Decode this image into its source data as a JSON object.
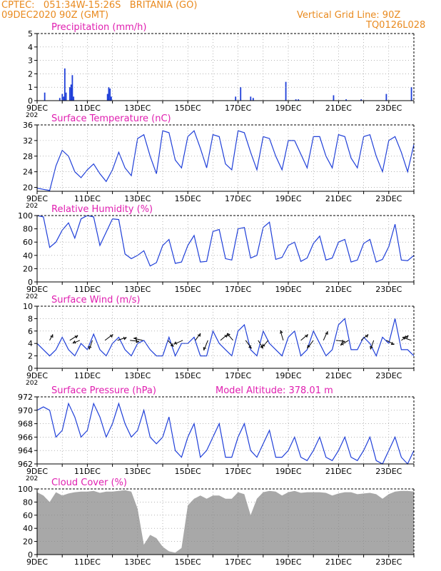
{
  "header": {
    "line1": "CPTEC:   051:34W-15:26S   BRITANIA (GO)",
    "line2": "09DEC2020 90Z (GMT)",
    "grid_note": "Vertical Grid Line: 90Z",
    "code": "TQ0126L028"
  },
  "colors": {
    "header": "#e98a1f",
    "title": "#e01fb0",
    "series": "#1f3fd9",
    "cloud": "#a8a8a8",
    "grid": "#888888",
    "wind_arrow": "#000000"
  },
  "x_axis": {
    "start_day": 9,
    "end_day": 24,
    "ticks": [
      "9DEC",
      "11DEC",
      "13DEC",
      "15DEC",
      "17DEC",
      "19DEC",
      "21DEC",
      "23DEC"
    ],
    "tick_days": [
      9,
      11,
      13,
      15,
      17,
      19,
      21,
      23
    ],
    "truncated_label": "202"
  },
  "model_altitude": "Model Altitude: 378.01 m",
  "chart_data": [
    {
      "id": "precip",
      "type": "bar",
      "title": "Precipitation (mm/h)",
      "ylim": [
        0,
        5
      ],
      "yticks": [
        "0",
        "1",
        "2",
        "3",
        "4",
        "5"
      ],
      "x": [
        9.3,
        9.9,
        10.0,
        10.05,
        10.1,
        10.15,
        10.3,
        10.35,
        10.4,
        10.45,
        11.8,
        11.85,
        11.9,
        11.95,
        16.9,
        17.1,
        17.5,
        17.6,
        18.9,
        19.3,
        19.4,
        20.8,
        21.3,
        21.9,
        22.9,
        23.9
      ],
      "values": [
        0.6,
        0.2,
        0.5,
        0.3,
        2.4,
        0.6,
        1.0,
        1.2,
        1.9,
        0.3,
        0.5,
        1.0,
        0.9,
        0.3,
        0.3,
        1.0,
        0.3,
        0.2,
        1.4,
        0.1,
        0.1,
        0.4,
        0.1,
        0.1,
        0.5,
        1.0
      ]
    },
    {
      "id": "temp",
      "type": "line",
      "title": "Surface Temperature (nC)",
      "ylim": [
        19,
        36
      ],
      "yticks": [
        "20",
        "24",
        "28",
        "32",
        "36"
      ],
      "ytick_values": [
        20,
        24,
        28,
        32,
        36
      ],
      "x": [
        9,
        9.25,
        9.5,
        9.75,
        10,
        10.25,
        10.5,
        10.75,
        11,
        11.25,
        11.5,
        11.75,
        12,
        12.25,
        12.5,
        12.75,
        13,
        13.25,
        13.5,
        13.75,
        14,
        14.25,
        14.5,
        14.75,
        15,
        15.25,
        15.5,
        15.75,
        16,
        16.25,
        16.5,
        16.75,
        17,
        17.25,
        17.5,
        17.75,
        18,
        18.25,
        18.5,
        18.75,
        19,
        19.25,
        19.5,
        19.75,
        20,
        20.25,
        20.5,
        20.75,
        21,
        21.25,
        21.5,
        21.75,
        22,
        22.25,
        22.5,
        22.75,
        23,
        23.25,
        23.5,
        23.75,
        24
      ],
      "values": [
        19.8,
        19.5,
        19.2,
        25.5,
        29.5,
        28,
        24,
        22.5,
        24.5,
        26,
        23.5,
        21.5,
        24.5,
        29,
        25,
        23,
        32.5,
        33.5,
        28,
        23.5,
        34.5,
        34,
        27,
        25,
        33,
        34.5,
        30,
        25,
        33.5,
        33,
        26,
        24.5,
        34.5,
        34,
        29,
        24.5,
        33,
        32.5,
        28,
        24.5,
        32,
        32,
        28.5,
        25,
        33,
        33,
        28,
        25,
        33.5,
        33,
        27.5,
        25,
        33,
        33.5,
        28,
        24,
        32,
        33,
        29,
        24,
        31
      ]
    },
    {
      "id": "rh",
      "type": "line",
      "title": "Relative Humidity (%)",
      "ylim": [
        0,
        100
      ],
      "yticks": [
        "0",
        "20",
        "40",
        "60",
        "80",
        "100"
      ],
      "x": [
        9,
        9.25,
        9.5,
        9.75,
        10,
        10.25,
        10.5,
        10.75,
        11,
        11.25,
        11.5,
        11.75,
        12,
        12.25,
        12.5,
        12.75,
        13,
        13.25,
        13.5,
        13.75,
        14,
        14.25,
        14.5,
        14.75,
        15,
        15.25,
        15.5,
        15.75,
        16,
        16.25,
        16.5,
        16.75,
        17,
        17.25,
        17.5,
        17.75,
        18,
        18.25,
        18.5,
        18.75,
        19,
        19.25,
        19.5,
        19.75,
        20,
        20.25,
        20.5,
        20.75,
        21,
        21.25,
        21.5,
        21.75,
        22,
        22.25,
        22.5,
        22.75,
        23,
        23.25,
        23.5,
        23.75,
        24
      ],
      "values": [
        100,
        98,
        52,
        60,
        78,
        89,
        66,
        95,
        100,
        98,
        55,
        75,
        95,
        94,
        42,
        35,
        40,
        47,
        24,
        29,
        55,
        64,
        28,
        30,
        55,
        70,
        30,
        31,
        76,
        79,
        35,
        33,
        80,
        82,
        36,
        40,
        82,
        90,
        34,
        37,
        55,
        60,
        31,
        36,
        58,
        69,
        33,
        36,
        60,
        64,
        30,
        33,
        58,
        64,
        30,
        34,
        53,
        87,
        33,
        32,
        40
      ]
    },
    {
      "id": "wind",
      "type": "line",
      "title": "Surface Wind (m/s)",
      "ylim": [
        0,
        10
      ],
      "yticks": [
        "0",
        "2",
        "4",
        "6",
        "8",
        "10"
      ],
      "x": [
        9,
        9.25,
        9.5,
        9.75,
        10,
        10.25,
        10.5,
        10.75,
        11,
        11.25,
        11.5,
        11.75,
        12,
        12.25,
        12.5,
        12.75,
        13,
        13.25,
        13.5,
        13.75,
        14,
        14.25,
        14.5,
        14.75,
        15,
        15.25,
        15.5,
        15.75,
        16,
        16.25,
        16.5,
        16.75,
        17,
        17.25,
        17.5,
        17.75,
        18,
        18.25,
        18.5,
        18.75,
        19,
        19.25,
        19.5,
        19.75,
        20,
        20.25,
        20.5,
        20.75,
        21,
        21.25,
        21.5,
        21.75,
        22,
        22.25,
        22.5,
        22.75,
        23,
        23.25,
        23.5,
        23.75,
        24
      ],
      "values": [
        4,
        3,
        2,
        3,
        5,
        3,
        2,
        4,
        3,
        5.5,
        3,
        2,
        4,
        5,
        3,
        2,
        4,
        4.5,
        3,
        2,
        2,
        5,
        2,
        4,
        4,
        5,
        2,
        2,
        6,
        4,
        3,
        2,
        6,
        7,
        3,
        2,
        6,
        4,
        3,
        2,
        5,
        6,
        2,
        3,
        6,
        4,
        2,
        3,
        7,
        8,
        3,
        3,
        5,
        4,
        2,
        5,
        4,
        8,
        3,
        3,
        2
      ],
      "vectors": [
        {
          "x": 9.5,
          "u": 0.3,
          "v": 0.6
        },
        {
          "x": 10.3,
          "u": 0.8,
          "v": 0.5
        },
        {
          "x": 10.7,
          "u": -0.7,
          "v": -0.3
        },
        {
          "x": 11.2,
          "u": -0.3,
          "v": -0.9
        },
        {
          "x": 11.7,
          "u": 0.8,
          "v": 0.6
        },
        {
          "x": 12.2,
          "u": 0.9,
          "v": 0.3
        },
        {
          "x": 12.7,
          "u": 0.9,
          "v": -0.1
        },
        {
          "x": 13.2,
          "u": -0.9,
          "v": 0.2
        },
        {
          "x": 14.2,
          "u": 0.6,
          "v": -0.6
        },
        {
          "x": 14.8,
          "u": -0.9,
          "v": -0.4
        },
        {
          "x": 15.3,
          "u": 0.5,
          "v": 0.7
        },
        {
          "x": 15.8,
          "u": -0.4,
          "v": -1.0
        },
        {
          "x": 16.3,
          "u": 0.7,
          "v": 0.6
        },
        {
          "x": 16.8,
          "u": -0.6,
          "v": 0.7
        },
        {
          "x": 17.3,
          "u": 0.6,
          "v": -0.8
        },
        {
          "x": 17.8,
          "u": 0.5,
          "v": -0.8
        },
        {
          "x": 18.2,
          "u": -0.6,
          "v": -0.7
        },
        {
          "x": 18.8,
          "u": -0.3,
          "v": 1.0
        },
        {
          "x": 19.5,
          "u": 0.7,
          "v": 0.6
        },
        {
          "x": 20.0,
          "u": -0.6,
          "v": -0.8
        },
        {
          "x": 20.4,
          "u": 0.4,
          "v": 0.9
        },
        {
          "x": 20.9,
          "u": 0.9,
          "v": -0.1
        },
        {
          "x": 21.4,
          "u": -0.8,
          "v": -0.5
        },
        {
          "x": 21.9,
          "u": 0.7,
          "v": 0.6
        },
        {
          "x": 22.4,
          "u": -0.3,
          "v": -0.9
        },
        {
          "x": 22.9,
          "u": 0.8,
          "v": -0.4
        },
        {
          "x": 23.5,
          "u": 0.7,
          "v": 0.5
        },
        {
          "x": 23.9,
          "u": -0.9,
          "v": 0.3
        }
      ]
    },
    {
      "id": "pres",
      "type": "line",
      "title": "Surface Pressure (hPa)",
      "ylim": [
        962,
        972
      ],
      "yticks": [
        "962",
        "964",
        "966",
        "968",
        "970",
        "972"
      ],
      "x": [
        9,
        9.25,
        9.5,
        9.75,
        10,
        10.25,
        10.5,
        10.75,
        11,
        11.25,
        11.5,
        11.75,
        12,
        12.25,
        12.5,
        12.75,
        13,
        13.25,
        13.5,
        13.75,
        14,
        14.25,
        14.5,
        14.75,
        15,
        15.25,
        15.5,
        15.75,
        16,
        16.25,
        16.5,
        16.75,
        17,
        17.25,
        17.5,
        17.75,
        18,
        18.25,
        18.5,
        18.75,
        19,
        19.25,
        19.5,
        19.75,
        20,
        20.25,
        20.5,
        20.75,
        21,
        21.25,
        21.5,
        21.75,
        22,
        22.25,
        22.5,
        22.75,
        23,
        23.25,
        23.5,
        23.75,
        24
      ],
      "values": [
        970,
        970.5,
        970,
        966,
        967,
        971,
        969,
        966,
        967,
        971,
        969,
        966,
        968,
        971,
        968,
        966,
        967,
        970,
        966,
        965,
        966,
        969,
        964,
        963,
        966,
        968,
        963,
        964,
        966,
        968,
        963,
        963,
        966,
        968,
        964,
        963,
        965,
        967,
        963,
        963,
        964,
        966,
        963,
        962.5,
        964,
        966,
        963,
        962.5,
        964,
        966,
        963,
        962.5,
        964,
        966,
        962.5,
        962,
        964,
        966,
        963,
        962,
        964
      ]
    },
    {
      "id": "cloud",
      "type": "area",
      "title": "Cloud Cover (%)",
      "ylim": [
        0,
        100
      ],
      "yticks": [
        "0",
        "20",
        "40",
        "60",
        "80",
        "100"
      ],
      "x": [
        9,
        9.25,
        9.5,
        9.75,
        10,
        10.25,
        10.5,
        10.75,
        11,
        11.25,
        11.5,
        11.75,
        12,
        12.25,
        12.5,
        12.75,
        13,
        13.25,
        13.5,
        13.75,
        14,
        14.25,
        14.5,
        14.75,
        15,
        15.25,
        15.5,
        15.75,
        16,
        16.25,
        16.5,
        16.75,
        17,
        17.25,
        17.5,
        17.75,
        18,
        18.25,
        18.5,
        18.75,
        19,
        19.25,
        19.5,
        19.75,
        20,
        20.25,
        20.5,
        20.75,
        21,
        21.25,
        21.5,
        21.75,
        22,
        22.25,
        22.5,
        22.75,
        23,
        23.25,
        23.5,
        23.75,
        24
      ],
      "values": [
        95,
        90,
        80,
        95,
        90,
        93,
        95,
        96,
        96,
        97,
        94,
        96,
        96,
        97,
        98,
        96,
        70,
        15,
        30,
        25,
        12,
        5,
        3,
        10,
        75,
        85,
        90,
        85,
        90,
        90,
        85,
        85,
        95,
        92,
        60,
        85,
        95,
        97,
        96,
        90,
        95,
        97,
        94,
        95,
        95,
        95,
        94,
        90,
        93,
        95,
        95,
        92,
        93,
        94,
        92,
        85,
        92,
        96,
        97,
        97,
        96
      ]
    }
  ]
}
